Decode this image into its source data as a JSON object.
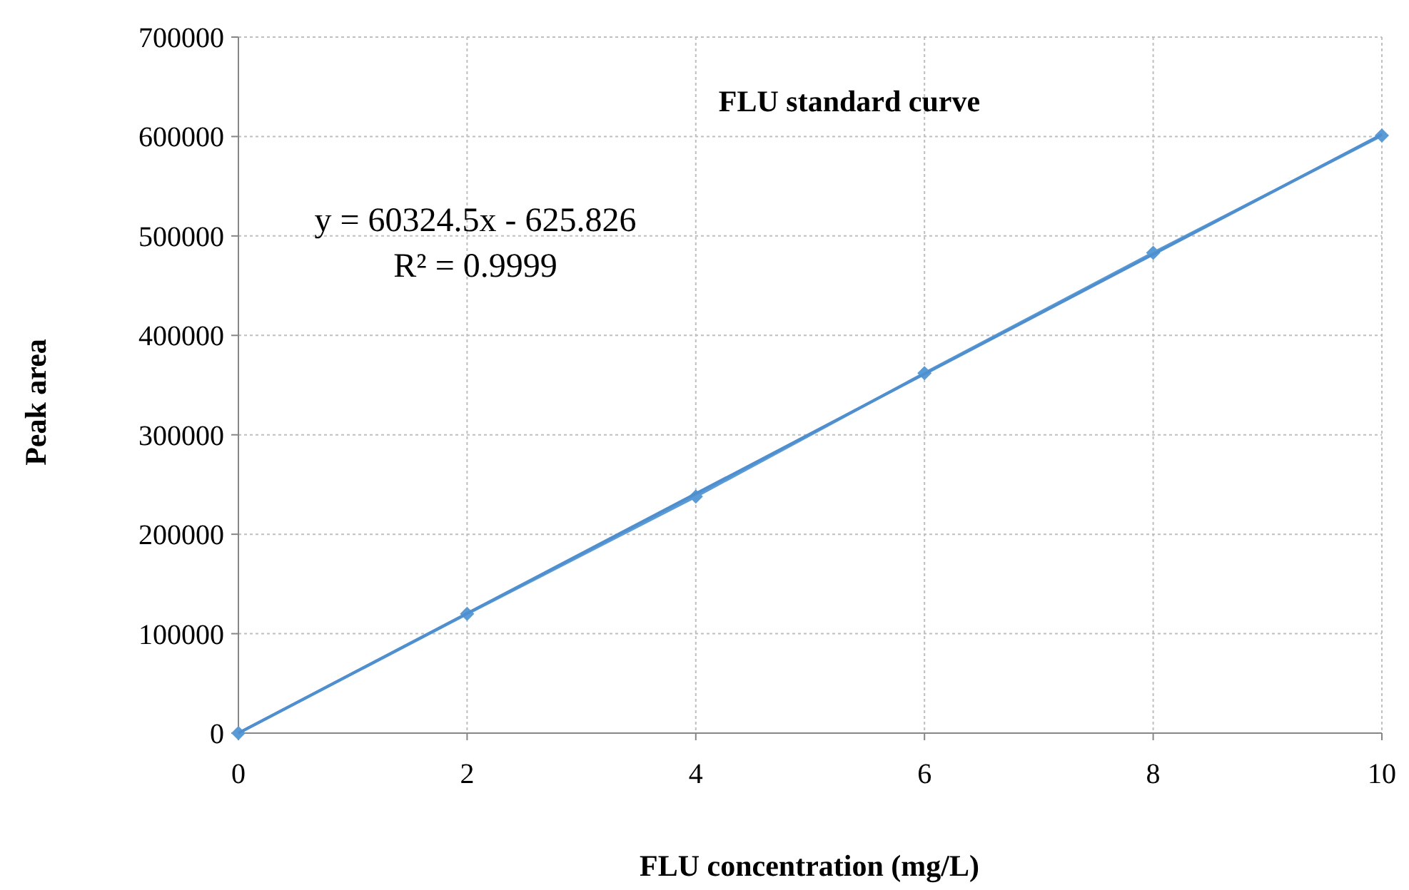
{
  "chart_data": {
    "type": "line",
    "title": "FLU standard curve",
    "xlabel": "FLU concentration (mg/L)",
    "ylabel": "Peak area",
    "x": [
      0,
      2,
      4,
      6,
      8,
      10
    ],
    "series": [
      {
        "color": "#5b9bd5",
        "values": [
          0,
          120000,
          238000,
          362000,
          483000,
          601000
        ],
        "marker": "diamond",
        "line_style": "solid"
      },
      {
        "type": "line",
        "x": [
          0,
          10
        ],
        "color": "#4f8fcf",
        "values": [
          0,
          602000
        ],
        "marker": "none",
        "line_style": "solid"
      }
    ],
    "xlim": [
      0,
      10
    ],
    "xticks": [
      0,
      2,
      4,
      6,
      8,
      10
    ],
    "ylim": [
      0,
      700000
    ],
    "yticks": [
      0,
      100000,
      200000,
      300000,
      400000,
      500000,
      600000,
      700000
    ],
    "grid": true,
    "annotations": [
      "y = 60324.5x - 625.826",
      "R² = 0.9999"
    ]
  }
}
